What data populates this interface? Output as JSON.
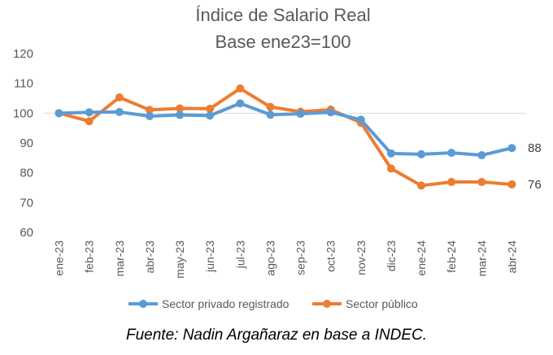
{
  "chart_data": {
    "type": "line",
    "title": [
      "Índice de Salario Real",
      "Base ene23=100"
    ],
    "categories": [
      "ene-23",
      "feb-23",
      "mar-23",
      "abr-23",
      "may-23",
      "jun-23",
      "jul-23",
      "ago-23",
      "sep-23",
      "oct-23",
      "nov-23",
      "dic-23",
      "ene-24",
      "feb-24",
      "mar-24",
      "abr-24"
    ],
    "ylim": [
      60,
      120
    ],
    "yticks": [
      60,
      70,
      80,
      90,
      100,
      110,
      120
    ],
    "grid": "horizontal line at 100 only",
    "legend_position": "bottom",
    "series": [
      {
        "name": "Sector privado registrado",
        "color": "#5B9BD5",
        "values": [
          100,
          100.3,
          100.4,
          99.0,
          99.4,
          99.2,
          103.3,
          99.5,
          99.8,
          100.3,
          97.8,
          86.5,
          86.2,
          86.7,
          85.9,
          88.3
        ],
        "end_label": "88"
      },
      {
        "name": "Sector público",
        "color": "#ED7D31",
        "values": [
          100,
          97.3,
          105.3,
          101.1,
          101.6,
          101.5,
          108.3,
          102.1,
          100.5,
          101.2,
          96.8,
          81.4,
          75.7,
          76.9,
          76.9,
          76.1
        ],
        "end_label": "76"
      }
    ]
  },
  "source_note": "Fuente: Nadin Argañaraz en base a INDEC."
}
